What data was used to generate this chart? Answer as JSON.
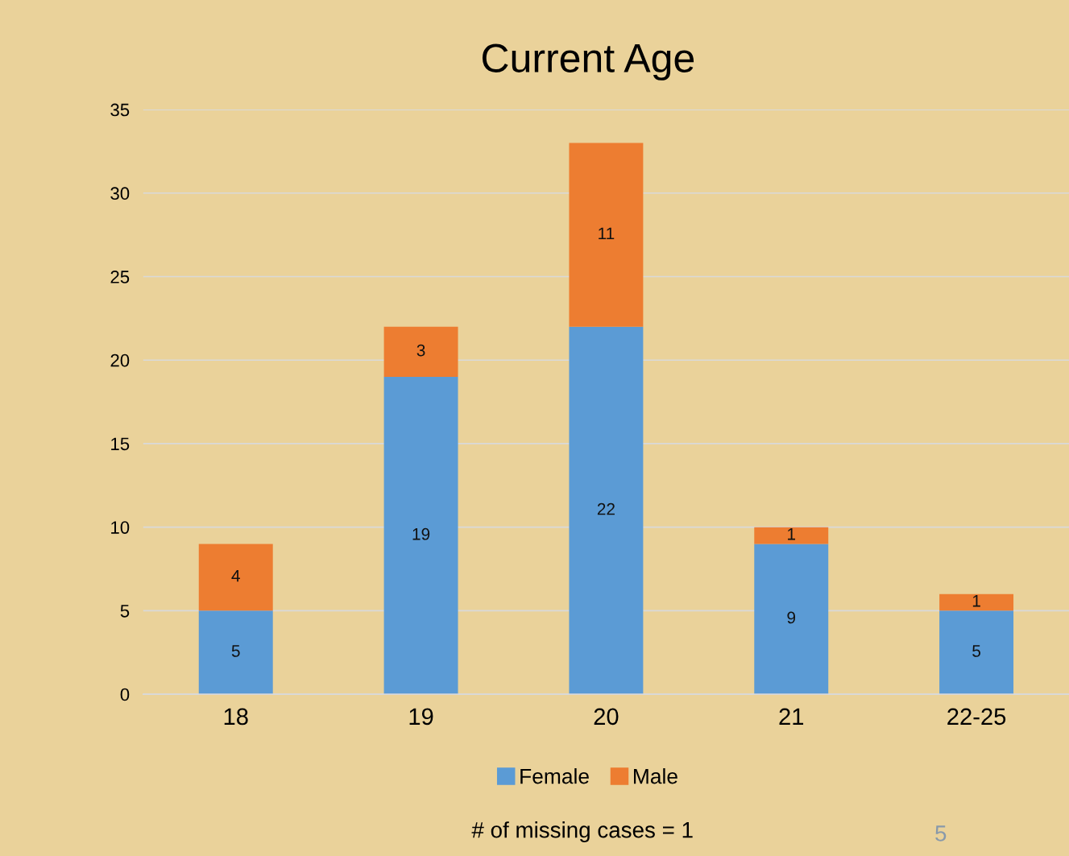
{
  "chart_data": {
    "type": "bar",
    "title": "Current Age",
    "stacked": true,
    "categories": [
      "18",
      "19",
      "20",
      "21",
      "22-25"
    ],
    "series": [
      {
        "name": "Female",
        "color": "#5b9bd5",
        "values": [
          5,
          19,
          22,
          9,
          5
        ]
      },
      {
        "name": "Male",
        "color": "#ed7d31",
        "values": [
          4,
          3,
          11,
          1,
          1
        ]
      }
    ],
    "ylim": [
      0,
      35
    ],
    "yticks": [
      0,
      5,
      10,
      15,
      20,
      25,
      30,
      35
    ],
    "grid": "y",
    "legend": "bottom",
    "data_labels": true,
    "annotations": [
      "# of missing cases = 1",
      "5"
    ]
  }
}
